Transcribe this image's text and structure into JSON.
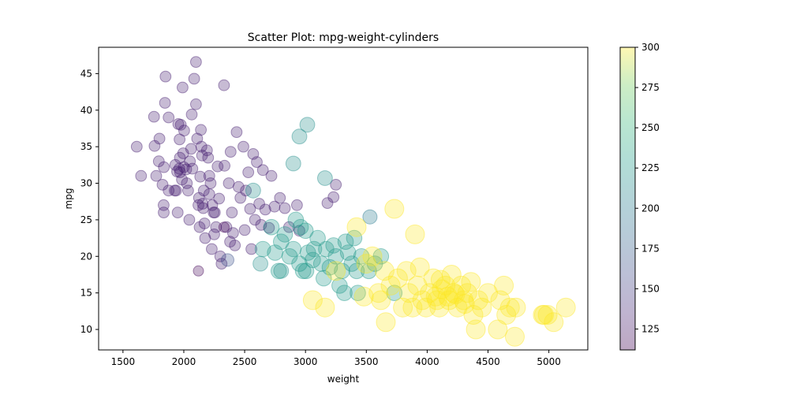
{
  "chart_data": {
    "type": "scatter",
    "title": "Scatter Plot: mpg-weight-cylinders",
    "xlabel": "weight",
    "ylabel": "mpg",
    "xlim": [
      1300,
      5320
    ],
    "ylim": [
      7.2,
      48.6
    ],
    "x_ticks": [
      1500,
      2000,
      2500,
      3000,
      3500,
      4000,
      4500,
      5000
    ],
    "y_ticks": [
      10,
      15,
      20,
      25,
      30,
      35,
      40,
      45
    ],
    "grid": false,
    "legend": "none",
    "colorbar": {
      "colormap": "viridis",
      "range": [
        112,
        300
      ],
      "ticks": [
        125,
        150,
        175,
        200,
        225,
        250,
        275,
        300
      ]
    },
    "point_alpha": 0.3,
    "points": [
      {
        "x": 1613,
        "y": 35,
        "c": 130
      },
      {
        "x": 1649,
        "y": 31,
        "c": 130
      },
      {
        "x": 1755,
        "y": 39.1,
        "c": 130
      },
      {
        "x": 1760,
        "y": 35.1,
        "c": 130
      },
      {
        "x": 1773,
        "y": 31,
        "c": 130
      },
      {
        "x": 1795,
        "y": 33,
        "c": 130
      },
      {
        "x": 1800,
        "y": 36.1,
        "c": 130
      },
      {
        "x": 1825,
        "y": 29.8,
        "c": 130
      },
      {
        "x": 1834,
        "y": 27,
        "c": 130
      },
      {
        "x": 1835,
        "y": 26,
        "c": 130
      },
      {
        "x": 1836,
        "y": 32.2,
        "c": 130
      },
      {
        "x": 1845,
        "y": 41,
        "c": 130
      },
      {
        "x": 1850,
        "y": 44.6,
        "c": 130
      },
      {
        "x": 1875,
        "y": 29,
        "c": 130
      },
      {
        "x": 1875,
        "y": 39,
        "c": 130
      },
      {
        "x": 1925,
        "y": 29,
        "c": 130
      },
      {
        "x": 1937,
        "y": 29,
        "c": 130
      },
      {
        "x": 1945,
        "y": 31.6,
        "c": 130
      },
      {
        "x": 1950,
        "y": 26,
        "c": 130
      },
      {
        "x": 1955,
        "y": 38.1,
        "c": 130
      },
      {
        "x": 1963,
        "y": 32,
        "c": 130
      },
      {
        "x": 1965,
        "y": 36,
        "c": 130
      },
      {
        "x": 1968,
        "y": 33.5,
        "c": 130
      },
      {
        "x": 1970,
        "y": 31.5,
        "c": 130
      },
      {
        "x": 1975,
        "y": 38,
        "c": 130
      },
      {
        "x": 1985,
        "y": 30.5,
        "c": 130
      },
      {
        "x": 1990,
        "y": 43.1,
        "c": 130
      },
      {
        "x": 1995,
        "y": 34.1,
        "c": 130
      },
      {
        "x": 2000,
        "y": 32.2,
        "c": 130
      },
      {
        "x": 2003,
        "y": 37.2,
        "c": 130
      },
      {
        "x": 2020,
        "y": 31.9,
        "c": 130
      },
      {
        "x": 2025,
        "y": 30,
        "c": 130
      },
      {
        "x": 2035,
        "y": 29,
        "c": 130
      },
      {
        "x": 2045,
        "y": 25,
        "c": 130
      },
      {
        "x": 2050,
        "y": 33,
        "c": 130
      },
      {
        "x": 2065,
        "y": 39.4,
        "c": 130
      },
      {
        "x": 2070,
        "y": 32,
        "c": 130
      },
      {
        "x": 2085,
        "y": 44.3,
        "c": 130
      },
      {
        "x": 2100,
        "y": 46.6,
        "c": 130
      },
      {
        "x": 2100,
        "y": 40.8,
        "c": 130
      },
      {
        "x": 2110,
        "y": 36.1,
        "c": 130
      },
      {
        "x": 2120,
        "y": 27,
        "c": 130
      },
      {
        "x": 2125,
        "y": 28,
        "c": 130
      },
      {
        "x": 2130,
        "y": 24,
        "c": 130
      },
      {
        "x": 2135,
        "y": 30.9,
        "c": 130
      },
      {
        "x": 2140,
        "y": 37.3,
        "c": 130
      },
      {
        "x": 2145,
        "y": 35,
        "c": 130
      },
      {
        "x": 2150,
        "y": 33.8,
        "c": 130
      },
      {
        "x": 2155,
        "y": 27.2,
        "c": 130
      },
      {
        "x": 2160,
        "y": 26.6,
        "c": 130
      },
      {
        "x": 2164,
        "y": 29,
        "c": 130
      },
      {
        "x": 2170,
        "y": 24.5,
        "c": 130
      },
      {
        "x": 2190,
        "y": 34.5,
        "c": 130
      },
      {
        "x": 2200,
        "y": 33.5,
        "c": 130
      },
      {
        "x": 2210,
        "y": 31,
        "c": 130
      },
      {
        "x": 2220,
        "y": 30,
        "c": 130
      },
      {
        "x": 2230,
        "y": 21,
        "c": 130
      },
      {
        "x": 2234,
        "y": 27,
        "c": 130
      },
      {
        "x": 2245,
        "y": 26,
        "c": 130
      },
      {
        "x": 2250,
        "y": 23,
        "c": 130
      },
      {
        "x": 2255,
        "y": 26,
        "c": 130
      },
      {
        "x": 2265,
        "y": 24,
        "c": 130
      },
      {
        "x": 2278,
        "y": 32.3,
        "c": 130
      },
      {
        "x": 2290,
        "y": 27.9,
        "c": 130
      },
      {
        "x": 2300,
        "y": 20,
        "c": 130
      },
      {
        "x": 2310,
        "y": 19,
        "c": 130
      },
      {
        "x": 2330,
        "y": 43.4,
        "c": 130
      },
      {
        "x": 2335,
        "y": 32.4,
        "c": 130
      },
      {
        "x": 2350,
        "y": 24,
        "c": 130
      },
      {
        "x": 2370,
        "y": 30,
        "c": 130
      },
      {
        "x": 2380,
        "y": 22,
        "c": 130
      },
      {
        "x": 2385,
        "y": 34.3,
        "c": 130
      },
      {
        "x": 2395,
        "y": 26,
        "c": 130
      },
      {
        "x": 2405,
        "y": 23.2,
        "c": 130
      },
      {
        "x": 2420,
        "y": 21.5,
        "c": 130
      },
      {
        "x": 2434,
        "y": 37,
        "c": 130
      },
      {
        "x": 2450,
        "y": 29.5,
        "c": 130
      },
      {
        "x": 2465,
        "y": 28,
        "c": 130
      },
      {
        "x": 2490,
        "y": 35,
        "c": 130
      },
      {
        "x": 2500,
        "y": 23.6,
        "c": 130
      },
      {
        "x": 2510,
        "y": 29,
        "c": 130
      },
      {
        "x": 2530,
        "y": 31.5,
        "c": 130
      },
      {
        "x": 2545,
        "y": 26.5,
        "c": 130
      },
      {
        "x": 2555,
        "y": 21,
        "c": 130
      },
      {
        "x": 2570,
        "y": 34,
        "c": 130
      },
      {
        "x": 2585,
        "y": 25,
        "c": 130
      },
      {
        "x": 2600,
        "y": 32.9,
        "c": 130
      },
      {
        "x": 2620,
        "y": 27.2,
        "c": 130
      },
      {
        "x": 2635,
        "y": 24.3,
        "c": 130
      },
      {
        "x": 2650,
        "y": 31.8,
        "c": 130
      },
      {
        "x": 2670,
        "y": 26.4,
        "c": 130
      },
      {
        "x": 2700,
        "y": 23.9,
        "c": 130
      },
      {
        "x": 2720,
        "y": 31,
        "c": 130
      },
      {
        "x": 2745,
        "y": 26.8,
        "c": 130
      },
      {
        "x": 2790,
        "y": 28,
        "c": 130
      },
      {
        "x": 2830,
        "y": 26.6,
        "c": 130
      },
      {
        "x": 2865,
        "y": 24,
        "c": 130
      },
      {
        "x": 2930,
        "y": 27,
        "c": 130
      },
      {
        "x": 2950,
        "y": 23.5,
        "c": 130
      },
      {
        "x": 3180,
        "y": 27.3,
        "c": 130
      },
      {
        "x": 3230,
        "y": 28.1,
        "c": 130
      },
      {
        "x": 3250,
        "y": 29.8,
        "c": 130
      },
      {
        "x": 2210,
        "y": 28.5,
        "c": 130
      },
      {
        "x": 2175,
        "y": 22.5,
        "c": 130
      },
      {
        "x": 2060,
        "y": 34.7,
        "c": 130
      },
      {
        "x": 1930,
        "y": 32.5,
        "c": 130
      },
      {
        "x": 2330,
        "y": 24,
        "c": 115
      },
      {
        "x": 2120,
        "y": 18,
        "c": 115
      },
      {
        "x": 2360,
        "y": 19.5,
        "c": 165
      },
      {
        "x": 2570,
        "y": 29,
        "c": 215
      },
      {
        "x": 2630,
        "y": 19,
        "c": 215
      },
      {
        "x": 2800,
        "y": 18,
        "c": 215
      },
      {
        "x": 2900,
        "y": 32.7,
        "c": 215
      },
      {
        "x": 2950,
        "y": 36.4,
        "c": 215
      },
      {
        "x": 3015,
        "y": 38,
        "c": 215
      },
      {
        "x": 3160,
        "y": 30.7,
        "c": 215
      },
      {
        "x": 3530,
        "y": 25.4,
        "c": 200
      },
      {
        "x": 2720,
        "y": 24,
        "c": 225
      },
      {
        "x": 2750,
        "y": 20.5,
        "c": 225
      },
      {
        "x": 2800,
        "y": 22,
        "c": 225
      },
      {
        "x": 2870,
        "y": 20,
        "c": 225
      },
      {
        "x": 2900,
        "y": 21,
        "c": 225
      },
      {
        "x": 2920,
        "y": 25,
        "c": 225
      },
      {
        "x": 2950,
        "y": 19,
        "c": 225
      },
      {
        "x": 2980,
        "y": 18,
        "c": 225
      },
      {
        "x": 3000,
        "y": 23.5,
        "c": 225
      },
      {
        "x": 3020,
        "y": 20.5,
        "c": 225
      },
      {
        "x": 3060,
        "y": 19.5,
        "c": 225
      },
      {
        "x": 3100,
        "y": 22.5,
        "c": 225
      },
      {
        "x": 3130,
        "y": 19,
        "c": 225
      },
      {
        "x": 3150,
        "y": 17,
        "c": 225
      },
      {
        "x": 3170,
        "y": 21,
        "c": 225
      },
      {
        "x": 3200,
        "y": 18.5,
        "c": 225
      },
      {
        "x": 3230,
        "y": 21.5,
        "c": 225
      },
      {
        "x": 3250,
        "y": 20,
        "c": 225
      },
      {
        "x": 3280,
        "y": 16,
        "c": 225
      },
      {
        "x": 3300,
        "y": 18,
        "c": 225
      },
      {
        "x": 3320,
        "y": 15,
        "c": 225
      },
      {
        "x": 3330,
        "y": 22,
        "c": 225
      },
      {
        "x": 3350,
        "y": 20.5,
        "c": 225
      },
      {
        "x": 3380,
        "y": 19,
        "c": 225
      },
      {
        "x": 3400,
        "y": 22.5,
        "c": 225
      },
      {
        "x": 3420,
        "y": 18,
        "c": 225
      },
      {
        "x": 3430,
        "y": 15,
        "c": 225
      },
      {
        "x": 3460,
        "y": 20,
        "c": 225
      },
      {
        "x": 3520,
        "y": 18,
        "c": 225
      },
      {
        "x": 3570,
        "y": 19,
        "c": 225
      },
      {
        "x": 3620,
        "y": 20,
        "c": 225
      },
      {
        "x": 3730,
        "y": 15,
        "c": 225
      },
      {
        "x": 2780,
        "y": 18,
        "c": 225
      },
      {
        "x": 2830,
        "y": 23,
        "c": 225
      },
      {
        "x": 2960,
        "y": 24,
        "c": 225
      },
      {
        "x": 3070,
        "y": 21,
        "c": 225
      },
      {
        "x": 2650,
        "y": 21,
        "c": 225
      },
      {
        "x": 3005,
        "y": 18,
        "c": 225
      },
      {
        "x": 3060,
        "y": 14,
        "c": 300
      },
      {
        "x": 3160,
        "y": 13,
        "c": 300
      },
      {
        "x": 3250,
        "y": 18,
        "c": 300
      },
      {
        "x": 3420,
        "y": 24,
        "c": 300
      },
      {
        "x": 3500,
        "y": 19,
        "c": 300
      },
      {
        "x": 3550,
        "y": 20,
        "c": 300
      },
      {
        "x": 3600,
        "y": 15,
        "c": 300
      },
      {
        "x": 3620,
        "y": 14,
        "c": 300
      },
      {
        "x": 3660,
        "y": 11,
        "c": 300
      },
      {
        "x": 3700,
        "y": 16,
        "c": 300
      },
      {
        "x": 3730,
        "y": 26.5,
        "c": 300
      },
      {
        "x": 3760,
        "y": 17,
        "c": 300
      },
      {
        "x": 3800,
        "y": 13,
        "c": 300
      },
      {
        "x": 3830,
        "y": 18,
        "c": 300
      },
      {
        "x": 3850,
        "y": 15,
        "c": 300
      },
      {
        "x": 3880,
        "y": 13,
        "c": 300
      },
      {
        "x": 3900,
        "y": 23,
        "c": 300
      },
      {
        "x": 3920,
        "y": 16,
        "c": 300
      },
      {
        "x": 3940,
        "y": 18.5,
        "c": 300
      },
      {
        "x": 3960,
        "y": 14,
        "c": 300
      },
      {
        "x": 3990,
        "y": 13,
        "c": 300
      },
      {
        "x": 4020,
        "y": 15,
        "c": 300
      },
      {
        "x": 4050,
        "y": 17,
        "c": 300
      },
      {
        "x": 4080,
        "y": 14,
        "c": 300
      },
      {
        "x": 4100,
        "y": 13,
        "c": 300
      },
      {
        "x": 4120,
        "y": 15.5,
        "c": 300
      },
      {
        "x": 4150,
        "y": 16,
        "c": 300
      },
      {
        "x": 4180,
        "y": 14,
        "c": 300
      },
      {
        "x": 4200,
        "y": 17.5,
        "c": 300
      },
      {
        "x": 4220,
        "y": 15,
        "c": 300
      },
      {
        "x": 4250,
        "y": 13,
        "c": 300
      },
      {
        "x": 4280,
        "y": 16,
        "c": 300
      },
      {
        "x": 4300,
        "y": 14,
        "c": 300
      },
      {
        "x": 4330,
        "y": 15,
        "c": 300
      },
      {
        "x": 4360,
        "y": 16.5,
        "c": 300
      },
      {
        "x": 4380,
        "y": 12,
        "c": 300
      },
      {
        "x": 4400,
        "y": 10,
        "c": 300
      },
      {
        "x": 4420,
        "y": 14,
        "c": 300
      },
      {
        "x": 4450,
        "y": 13,
        "c": 300
      },
      {
        "x": 4500,
        "y": 15,
        "c": 300
      },
      {
        "x": 4580,
        "y": 10,
        "c": 300
      },
      {
        "x": 4600,
        "y": 14,
        "c": 300
      },
      {
        "x": 4630,
        "y": 16,
        "c": 300
      },
      {
        "x": 4650,
        "y": 12,
        "c": 300
      },
      {
        "x": 4680,
        "y": 13,
        "c": 300
      },
      {
        "x": 4720,
        "y": 9,
        "c": 300
      },
      {
        "x": 4730,
        "y": 13,
        "c": 300
      },
      {
        "x": 4950,
        "y": 12,
        "c": 300
      },
      {
        "x": 4960,
        "y": 12,
        "c": 300
      },
      {
        "x": 4990,
        "y": 12,
        "c": 300
      },
      {
        "x": 5140,
        "y": 13,
        "c": 300
      },
      {
        "x": 5040,
        "y": 11,
        "c": 300
      },
      {
        "x": 3480,
        "y": 14.5,
        "c": 300
      },
      {
        "x": 3650,
        "y": 18,
        "c": 300
      },
      {
        "x": 4070,
        "y": 14.5,
        "c": 300
      },
      {
        "x": 4170,
        "y": 14.5,
        "c": 300
      },
      {
        "x": 4310,
        "y": 13.5,
        "c": 300
      },
      {
        "x": 4110,
        "y": 16.8,
        "c": 300
      },
      {
        "x": 4230,
        "y": 14.8,
        "c": 300
      }
    ]
  }
}
